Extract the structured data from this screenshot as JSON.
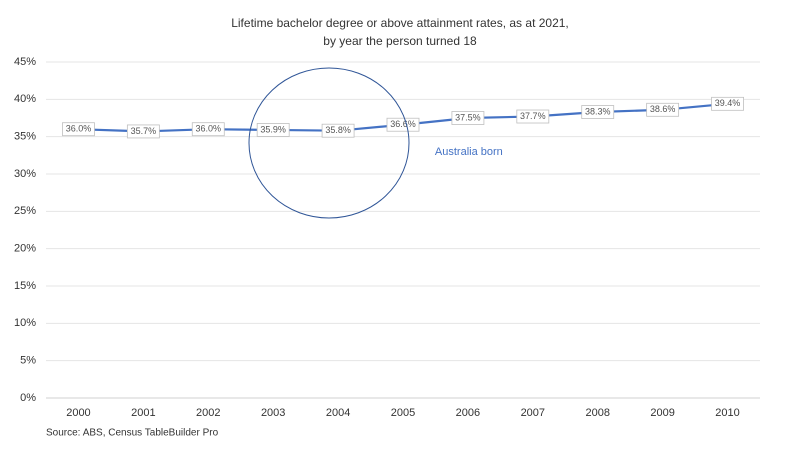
{
  "chart_data": {
    "type": "line",
    "title": [
      "Lifetime bachelor degree or above attainment rates, as at 2021,",
      "by year the person turned 18"
    ],
    "categories": [
      "2000",
      "2001",
      "2002",
      "2003",
      "2004",
      "2005",
      "2006",
      "2007",
      "2008",
      "2009",
      "2010"
    ],
    "series": [
      {
        "name": "Australia born",
        "color": "#4472c4",
        "values": [
          36.0,
          35.7,
          36.0,
          35.9,
          35.8,
          36.6,
          37.5,
          37.7,
          38.3,
          38.6,
          39.4
        ],
        "value_labels": [
          "36.0%",
          "35.7%",
          "36.0%",
          "35.9%",
          "35.8%",
          "36.6%",
          "37.5%",
          "37.7%",
          "38.3%",
          "38.6%",
          "39.4%"
        ]
      }
    ],
    "ylim": [
      0,
      45
    ],
    "yticks": [
      {
        "value": 0,
        "label": "0%"
      },
      {
        "value": 5,
        "label": "5%"
      },
      {
        "value": 10,
        "label": "10%"
      },
      {
        "value": 15,
        "label": "15%"
      },
      {
        "value": 20,
        "label": "20%"
      },
      {
        "value": 25,
        "label": "25%"
      },
      {
        "value": 30,
        "label": "30%"
      },
      {
        "value": 35,
        "label": "35%"
      },
      {
        "value": 40,
        "label": "40%"
      },
      {
        "value": 45,
        "label": "45%"
      }
    ],
    "grid": true,
    "source": "Source: ABS, Census TableBuilder Pro"
  }
}
